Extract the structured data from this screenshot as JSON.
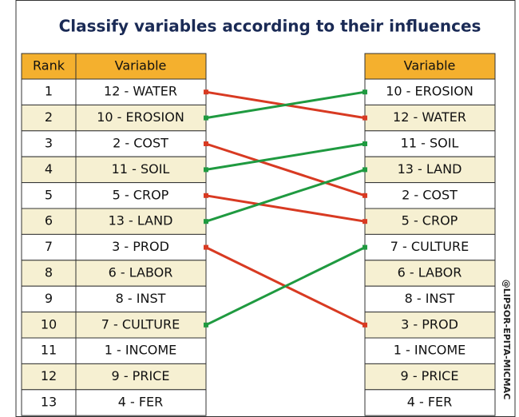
{
  "title": "Classify variables according to their influences",
  "left_table": {
    "headers": [
      "Rank",
      "Variable"
    ],
    "rows": [
      [
        "1",
        "12 - WATER"
      ],
      [
        "2",
        "10 - EROSION"
      ],
      [
        "3",
        "2 - COST"
      ],
      [
        "4",
        "11 - SOIL"
      ],
      [
        "5",
        "5 - CROP"
      ],
      [
        "6",
        "13 - LAND"
      ],
      [
        "7",
        "3 - PROD"
      ],
      [
        "8",
        "6 - LABOR"
      ],
      [
        "9",
        "8 - INST"
      ],
      [
        "10",
        "7 - CULTURE"
      ],
      [
        "11",
        "1 - INCOME"
      ],
      [
        "12",
        "9 - PRICE"
      ],
      [
        "13",
        "4 - FER"
      ]
    ]
  },
  "right_table": {
    "headers": [
      "Variable"
    ],
    "rows": [
      "10 - EROSION",
      "12 - WATER",
      "11 - SOIL",
      "13 - LAND",
      "2 - COST",
      "5 - CROP",
      "7 - CULTURE",
      "6 - LABOR",
      "8 - INST",
      "3 - PROD",
      "1 - INCOME",
      "9 - PRICE",
      "4 - FER"
    ]
  },
  "links": [
    {
      "from": 0,
      "to": 1,
      "color": "#d83a22"
    },
    {
      "from": 1,
      "to": 0,
      "color": "#1f9a40"
    },
    {
      "from": 2,
      "to": 4,
      "color": "#d83a22"
    },
    {
      "from": 3,
      "to": 2,
      "color": "#1f9a40"
    },
    {
      "from": 4,
      "to": 5,
      "color": "#d83a22"
    },
    {
      "from": 5,
      "to": 3,
      "color": "#1f9a40"
    },
    {
      "from": 6,
      "to": 9,
      "color": "#d83a22"
    },
    {
      "from": 9,
      "to": 6,
      "color": "#1f9a40"
    }
  ],
  "copyright": "@LIPSOR-EPITA-MICMAC"
}
